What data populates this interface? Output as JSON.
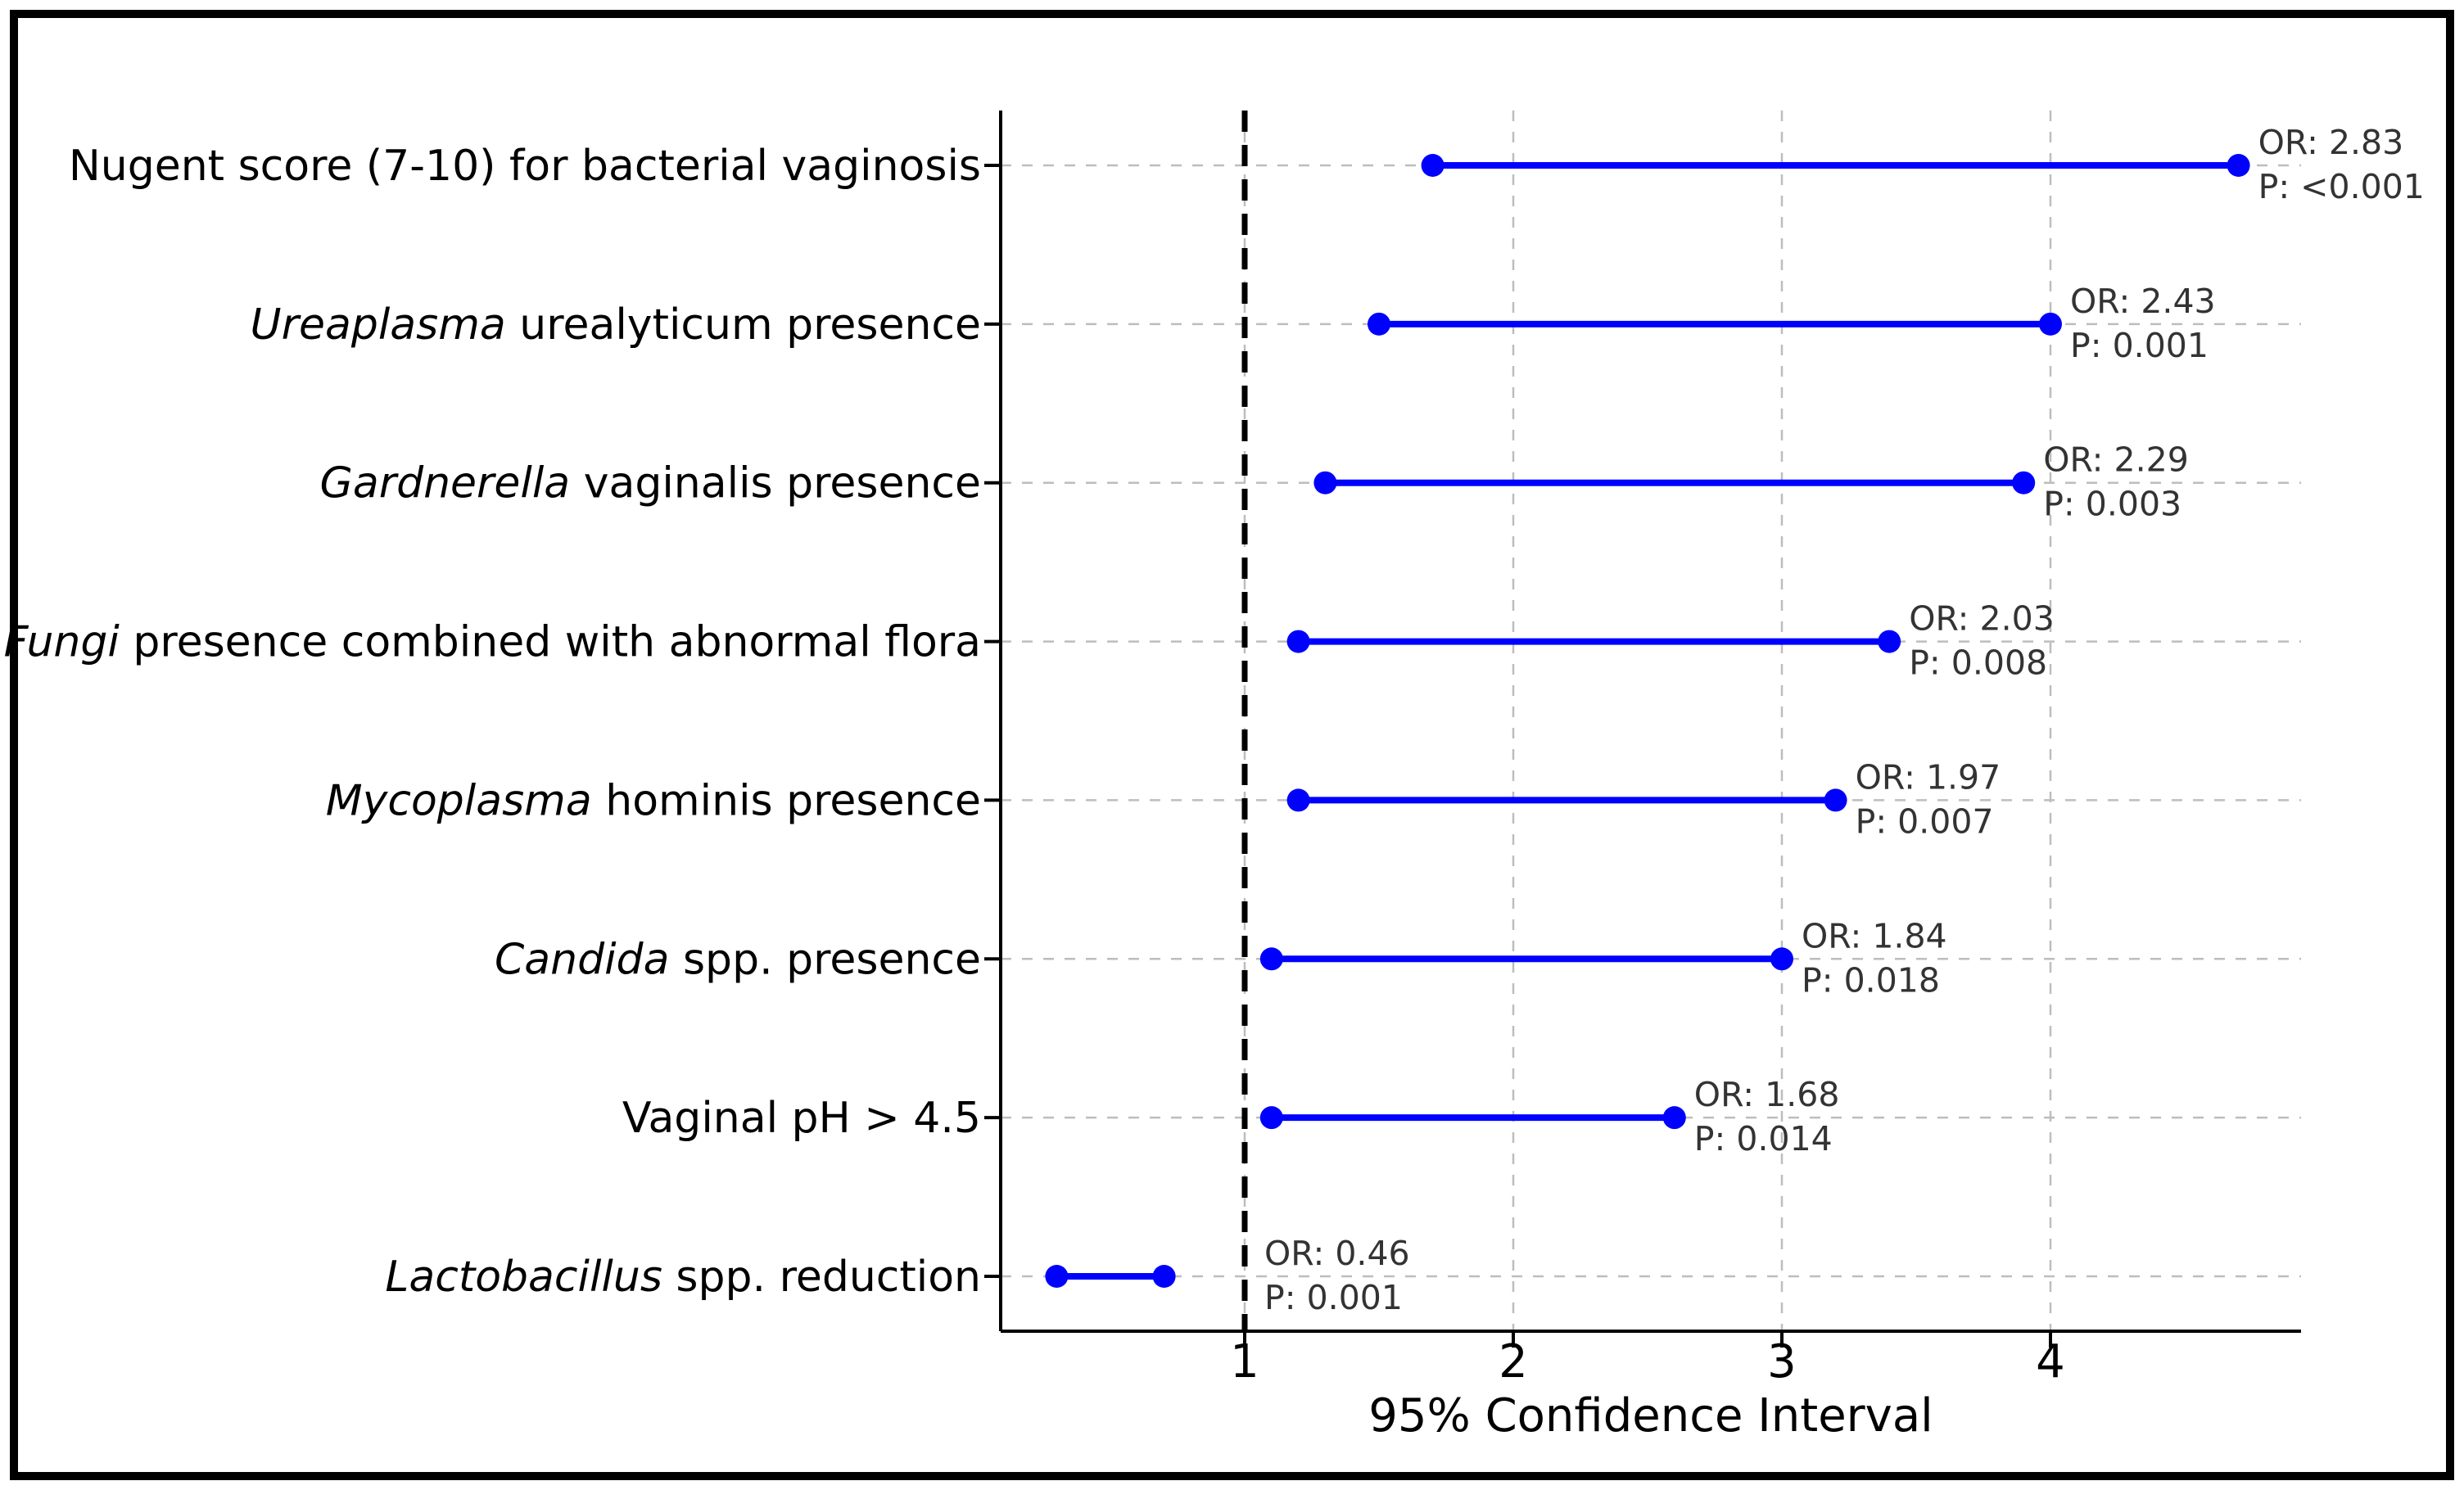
{
  "figure": {
    "background": "#ffffff",
    "frame_color": "#000000"
  },
  "chart_data": {
    "type": "scatter",
    "variant": "forest-plot-dumbbell",
    "title": "",
    "xlabel": "95% Confidence Interval",
    "ylabel": "",
    "x_ticks": [
      "1",
      "2",
      "3",
      "4"
    ],
    "x_tick_values": [
      1,
      2,
      3,
      4
    ],
    "xlim": [
      0.09,
      4.93
    ],
    "grid": true,
    "legend": "none",
    "reference_line": {
      "x": 1,
      "style": "dashed",
      "color": "#000000"
    },
    "colors": {
      "interval": "#0000ff",
      "annotation_text": "#333333",
      "axis_text": "#000000",
      "gridline": "#bdbdbd",
      "spine": "#000000"
    },
    "rows": [
      {
        "label_italic": "",
        "label_rest": "Nugent score (7-10) for bacterial vaginosis",
        "or": 2.83,
        "ci_low": 1.7,
        "ci_high": 4.7,
        "or_label": "OR: 2.83",
        "p_label": "P: <0.001"
      },
      {
        "label_italic": "Ureaplasma",
        "label_rest": " urealyticum presence",
        "or": 2.43,
        "ci_low": 1.5,
        "ci_high": 4.0,
        "or_label": "OR: 2.43",
        "p_label": "P: 0.001"
      },
      {
        "label_italic": "Gardnerella",
        "label_rest": " vaginalis presence",
        "or": 2.29,
        "ci_low": 1.3,
        "ci_high": 3.9,
        "or_label": "OR: 2.29",
        "p_label": "P: 0.003"
      },
      {
        "label_italic": "Fungi",
        "label_rest": " presence combined with abnormal flora",
        "or": 2.03,
        "ci_low": 1.2,
        "ci_high": 3.4,
        "or_label": "OR: 2.03",
        "p_label": "P: 0.008"
      },
      {
        "label_italic": "Mycoplasma",
        "label_rest": " hominis presence",
        "or": 1.97,
        "ci_low": 1.2,
        "ci_high": 3.2,
        "or_label": "OR: 1.97",
        "p_label": "P: 0.007"
      },
      {
        "label_italic": "Candida",
        "label_rest": " spp. presence",
        "or": 1.84,
        "ci_low": 1.1,
        "ci_high": 3.0,
        "or_label": "OR: 1.84",
        "p_label": "P: 0.018"
      },
      {
        "label_italic": "",
        "label_rest": "Vaginal pH > 4.5",
        "or": 1.68,
        "ci_low": 1.1,
        "ci_high": 2.6,
        "or_label": "OR: 1.68",
        "p_label": "P: 0.014"
      },
      {
        "label_italic": "Lactobacillus",
        "label_rest": " spp. reduction",
        "or": 0.46,
        "ci_low": 0.3,
        "ci_high": 0.7,
        "or_label": "OR: 0.46",
        "p_label": "P: 0.001"
      }
    ]
  }
}
